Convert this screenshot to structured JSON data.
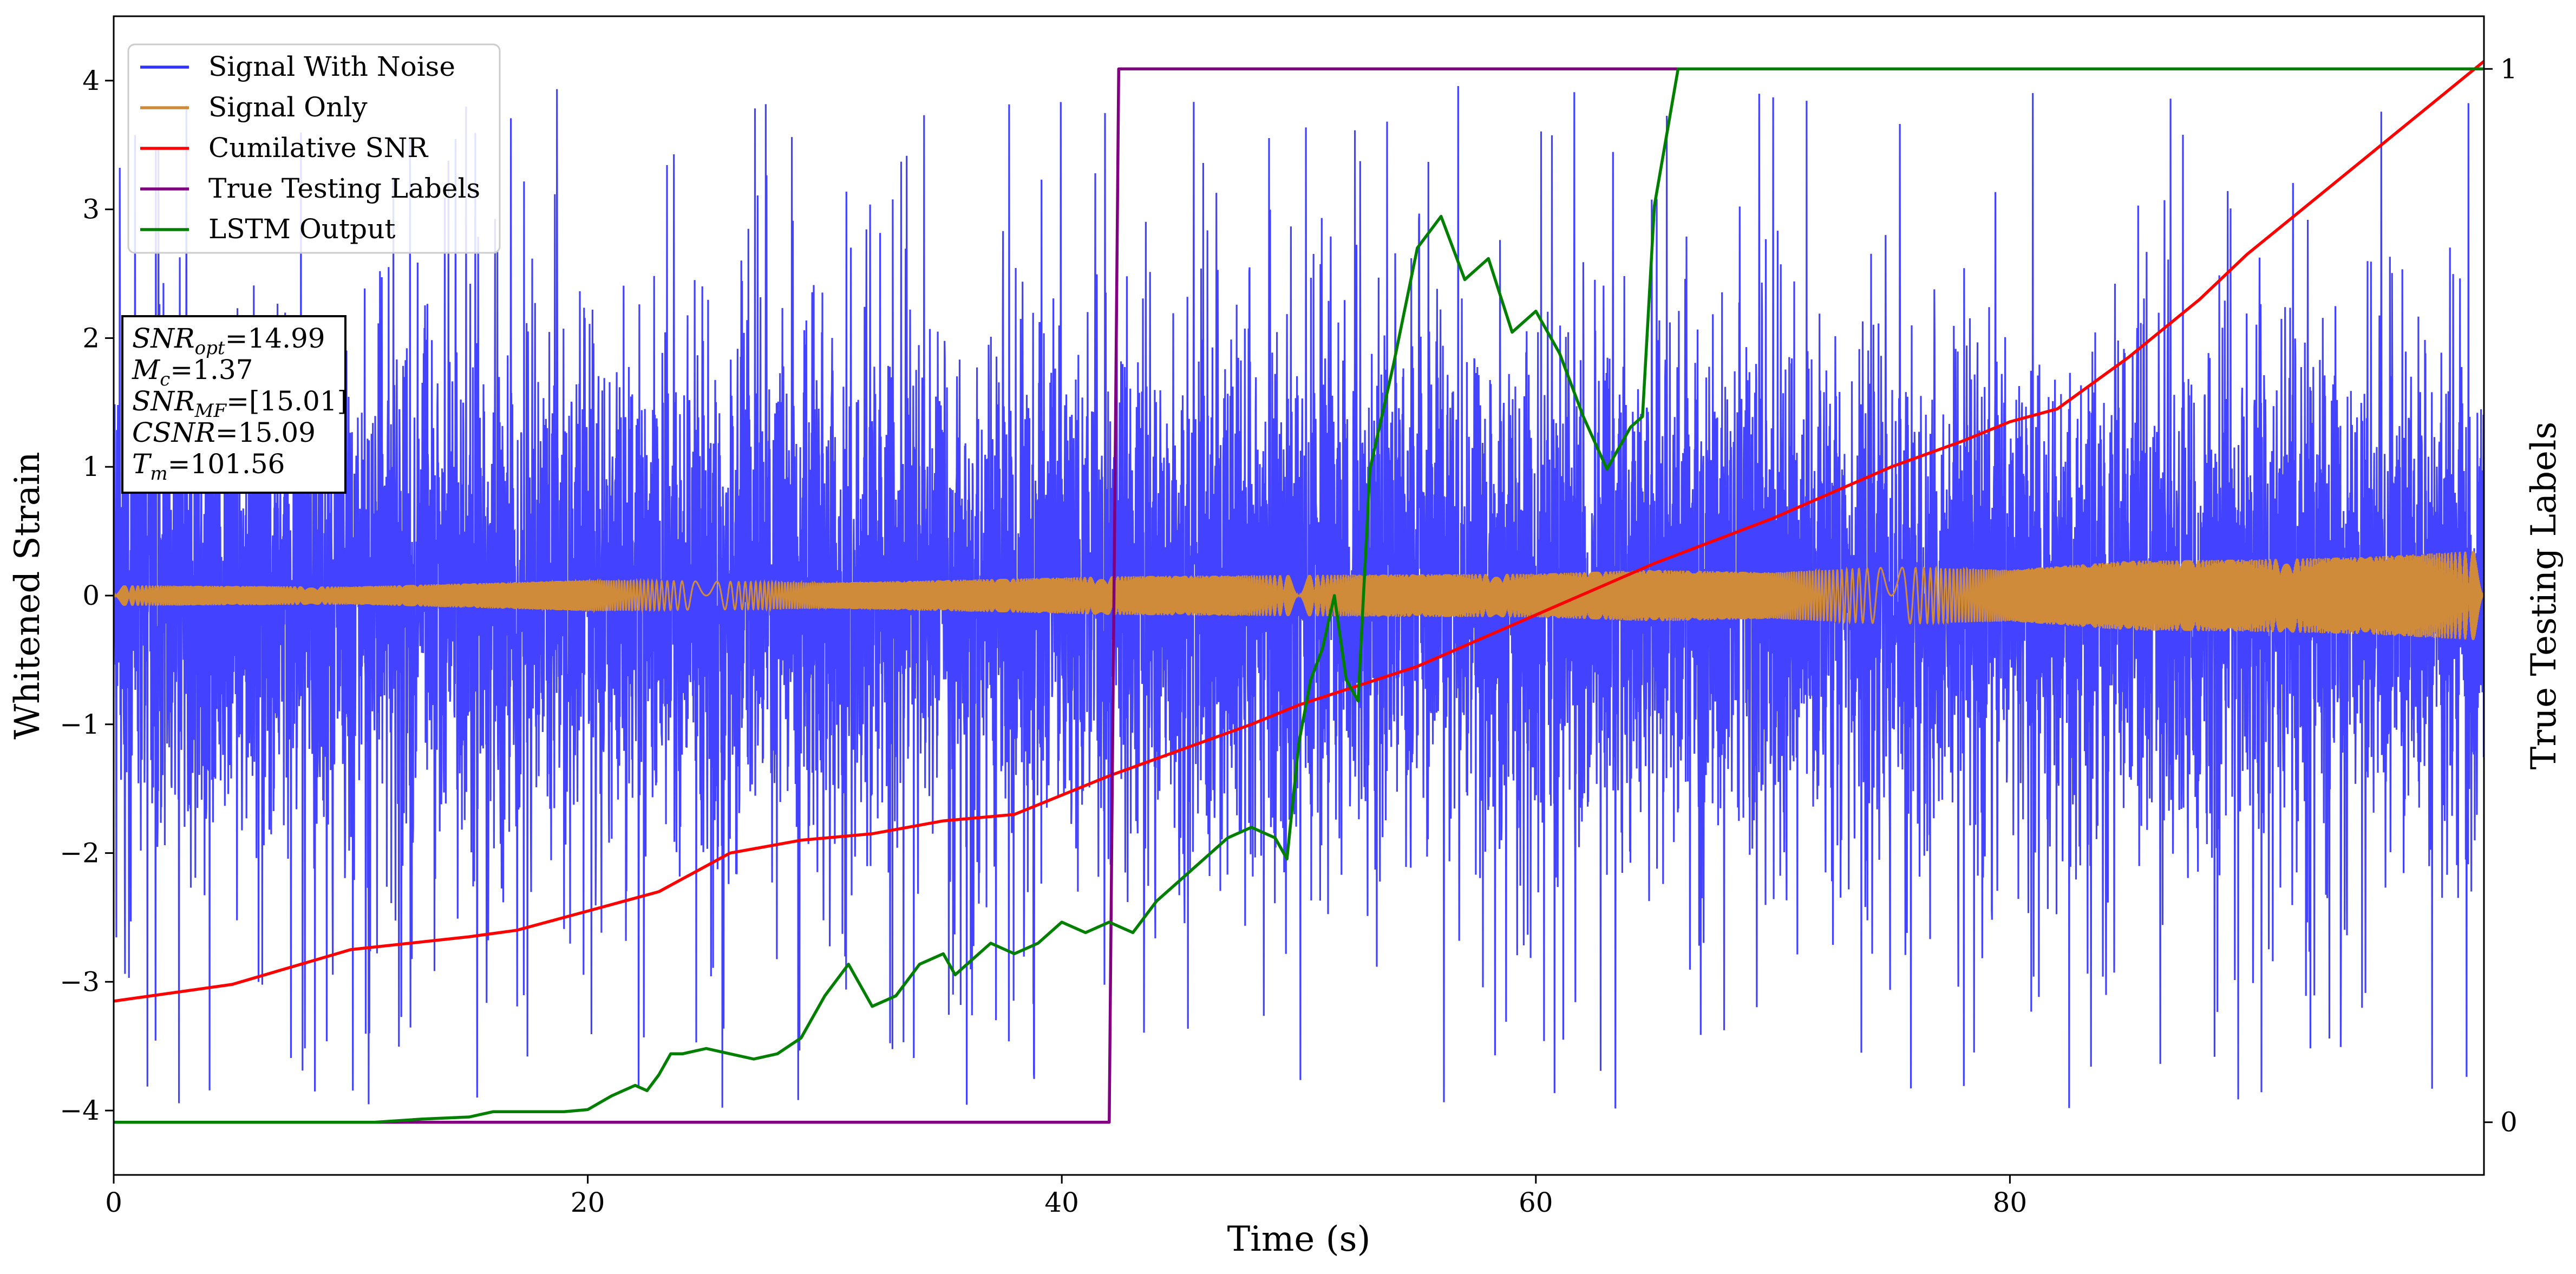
{
  "chart_data": {
    "type": "line",
    "xlabel": "Time (s)",
    "ylabel": "Whitened Strain",
    "ylabel_right": "True Testing Labels",
    "xlim": [
      0,
      100
    ],
    "ylim": [
      -4.5,
      4.5
    ],
    "ylim_right": [
      -0.05,
      1.05
    ],
    "x_ticks": [
      0,
      20,
      40,
      60,
      80
    ],
    "y_ticks": [
      -4,
      -3,
      -2,
      -1,
      0,
      1,
      2,
      3,
      4
    ],
    "y_ticks_right": [
      0,
      1
    ],
    "legend_position": "upper left",
    "series": [
      {
        "name": "Signal With Noise",
        "color": "#3333ff",
        "axis": "left",
        "kind": "noise",
        "amplitude_typical": 1.3,
        "amplitude_peak": 4.0
      },
      {
        "name": "Signal Only",
        "color": "#cf8b3a",
        "axis": "left",
        "kind": "envelope",
        "x": [
          0,
          10,
          20,
          30,
          40,
          42,
          50,
          60,
          65,
          70,
          75,
          80,
          85,
          90,
          95,
          100
        ],
        "envelope": [
          0.08,
          0.07,
          0.12,
          0.1,
          0.14,
          0.15,
          0.16,
          0.17,
          0.2,
          0.18,
          0.22,
          0.2,
          0.27,
          0.28,
          0.3,
          0.35
        ]
      },
      {
        "name": "Cumilative SNR",
        "color": "#ff0000",
        "axis": "left",
        "x": [
          0,
          5,
          10,
          15,
          17,
          20,
          23,
          26,
          29,
          32,
          35,
          38,
          40,
          42,
          45,
          48,
          50,
          55,
          60,
          65,
          70,
          75,
          78,
          80,
          82,
          85,
          88,
          90,
          92,
          95,
          98,
          100
        ],
        "y": [
          -3.15,
          -3.02,
          -2.75,
          -2.65,
          -2.6,
          -2.45,
          -2.3,
          -2.0,
          -1.9,
          -1.85,
          -1.75,
          -1.7,
          -1.55,
          -1.4,
          -1.2,
          -1.0,
          -0.85,
          -0.55,
          -0.15,
          0.25,
          0.6,
          1.0,
          1.2,
          1.35,
          1.45,
          1.85,
          2.3,
          2.65,
          2.95,
          3.4,
          3.85,
          4.15
        ]
      },
      {
        "name": "True Testing Labels",
        "color": "#800080",
        "axis": "right",
        "x": [
          0,
          42.0,
          42.4,
          100
        ],
        "y": [
          0,
          0,
          1,
          1
        ]
      },
      {
        "name": "LSTM Output",
        "color": "#007f00",
        "axis": "right",
        "x": [
          0,
          11,
          13,
          15,
          16,
          18,
          19,
          20,
          21,
          22,
          22.5,
          23,
          23.5,
          24,
          25,
          26,
          27,
          28,
          29,
          30,
          31,
          32,
          33,
          34,
          35,
          35.5,
          36,
          37,
          38,
          39,
          40,
          41,
          42,
          43,
          44,
          45,
          46,
          47,
          48,
          49,
          49.5,
          50,
          50.5,
          51,
          51.5,
          52,
          52.5,
          53,
          54,
          55,
          56,
          57,
          58,
          59,
          60,
          61,
          62,
          63,
          64,
          64.5,
          65,
          66,
          67,
          68,
          70,
          73,
          100
        ],
        "y": [
          0,
          0,
          0.003,
          0.005,
          0.01,
          0.01,
          0.01,
          0.012,
          0.025,
          0.035,
          0.03,
          0.045,
          0.065,
          0.065,
          0.07,
          0.065,
          0.06,
          0.065,
          0.08,
          0.12,
          0.15,
          0.11,
          0.12,
          0.15,
          0.16,
          0.14,
          0.15,
          0.17,
          0.16,
          0.17,
          0.19,
          0.18,
          0.19,
          0.18,
          0.21,
          0.23,
          0.25,
          0.27,
          0.28,
          0.27,
          0.25,
          0.36,
          0.42,
          0.45,
          0.5,
          0.42,
          0.4,
          0.62,
          0.72,
          0.83,
          0.86,
          0.8,
          0.82,
          0.75,
          0.77,
          0.73,
          0.67,
          0.62,
          0.66,
          0.67,
          0.87,
          1.0,
          1.0,
          1.0,
          1.0,
          1.0,
          1.0
        ]
      }
    ],
    "annotation": {
      "lines": [
        {
          "label": "SNR",
          "sub": "opt",
          "value": "=14.99"
        },
        {
          "label": "M",
          "sub": "c",
          "value": "=1.37"
        },
        {
          "label": "SNR",
          "sub": "MF",
          "value": "=[15.01]"
        },
        {
          "label": "CSNR",
          "sub": "",
          "value": "=15.09"
        },
        {
          "label": "T",
          "sub": "m",
          "value": "=101.56"
        }
      ]
    }
  }
}
